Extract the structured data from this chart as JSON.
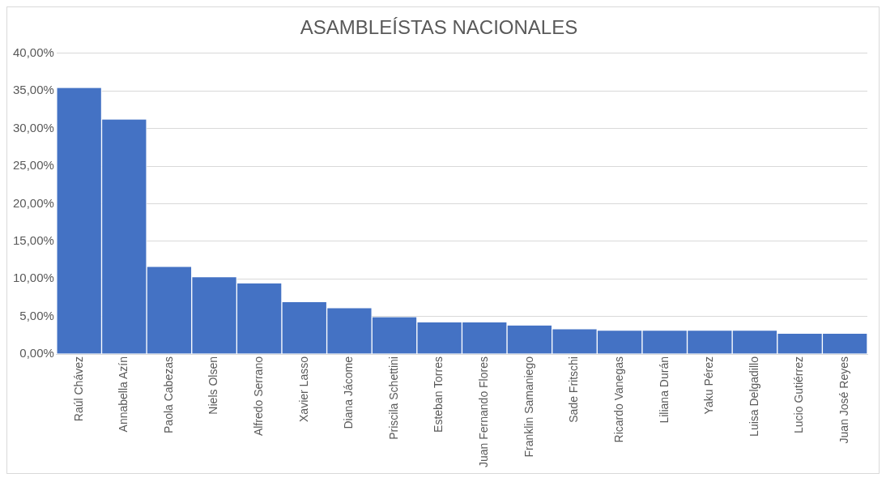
{
  "chart_data": {
    "type": "bar",
    "title": "ASAMBLEÍSTAS NACIONALES",
    "categories": [
      "Raúl Chávez",
      "Annabella Azín",
      "Paola Cabezas",
      "Niels Olsen",
      "Alfredo Serrano",
      "Xavier Lasso",
      "Diana Jácome",
      "Priscila Schettini",
      "Esteban Torres",
      "Juan Fernando Flores",
      "Franklin Samaniego",
      "Sade Fritschi",
      "Ricardo Vanegas",
      "Liliana Durán",
      "Yaku Pérez",
      "Luisa Delgadillo",
      "Lucio Gutiérrez",
      "Juan José Reyes"
    ],
    "values": [
      35.4,
      31.2,
      11.6,
      10.2,
      9.4,
      6.9,
      6.1,
      4.9,
      4.2,
      4.2,
      3.8,
      3.3,
      3.1,
      3.1,
      3.1,
      3.1,
      2.7,
      2.7
    ],
    "color": "#4472c4",
    "ylim": [
      0,
      40
    ],
    "yticks": [
      {
        "value": 0,
        "label": "0,00%"
      },
      {
        "value": 5,
        "label": "5,00%"
      },
      {
        "value": 10,
        "label": "10,00%"
      },
      {
        "value": 15,
        "label": "15,00%"
      },
      {
        "value": 20,
        "label": "20,00%"
      },
      {
        "value": 25,
        "label": "25,00%"
      },
      {
        "value": 30,
        "label": "30,00%"
      },
      {
        "value": 35,
        "label": "35,00%"
      },
      {
        "value": 40,
        "label": "40,00%"
      }
    ],
    "grid": "y",
    "legend": false
  }
}
